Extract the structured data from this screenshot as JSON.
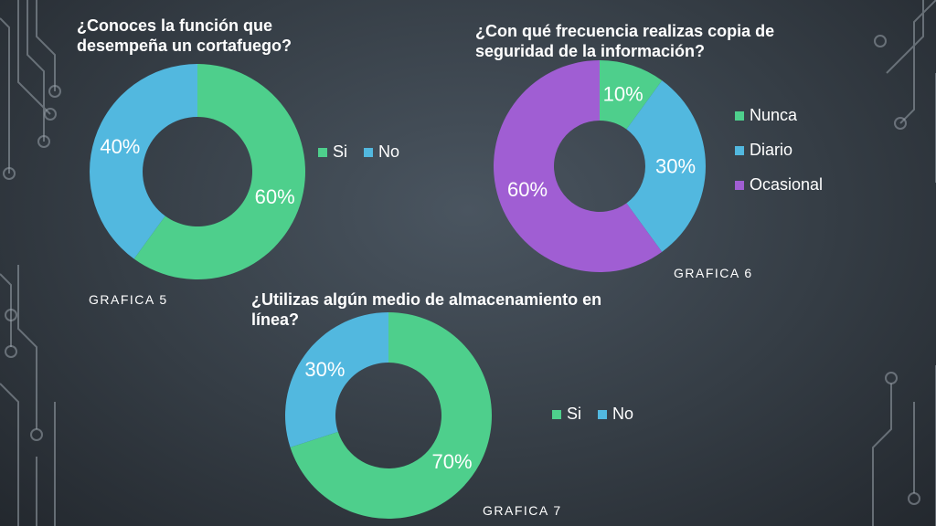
{
  "colors": {
    "green": "#4ecf8c",
    "blue": "#52b8df",
    "purple": "#a05ed3"
  },
  "chart_data": [
    {
      "type": "pie",
      "title": "¿Conoces la función que desempeña un cortafuego?",
      "caption": "GRAFICA 5",
      "categories": [
        "Si",
        "No"
      ],
      "values": [
        60,
        40
      ],
      "labels": [
        "60%",
        "40%"
      ],
      "colors": [
        "#4ecf8c",
        "#52b8df"
      ],
      "legend": "right"
    },
    {
      "type": "pie",
      "title": "¿Con qué frecuencia realizas copia de seguridad de la información?",
      "caption": "GRAFICA 6",
      "categories": [
        "Nunca",
        "Diario",
        "Ocasional"
      ],
      "values": [
        10,
        30,
        60
      ],
      "labels": [
        "10%",
        "30%",
        "60%"
      ],
      "colors": [
        "#4ecf8c",
        "#52b8df",
        "#a05ed3"
      ],
      "legend": "right"
    },
    {
      "type": "pie",
      "title": "¿Utilizas algún medio de almacenamiento en línea?",
      "caption": "GRAFICA 7",
      "categories": [
        "Si",
        "No"
      ],
      "values": [
        70,
        30
      ],
      "labels": [
        "70%",
        "30%"
      ],
      "colors": [
        "#4ecf8c",
        "#52b8df"
      ],
      "legend": "right"
    }
  ]
}
